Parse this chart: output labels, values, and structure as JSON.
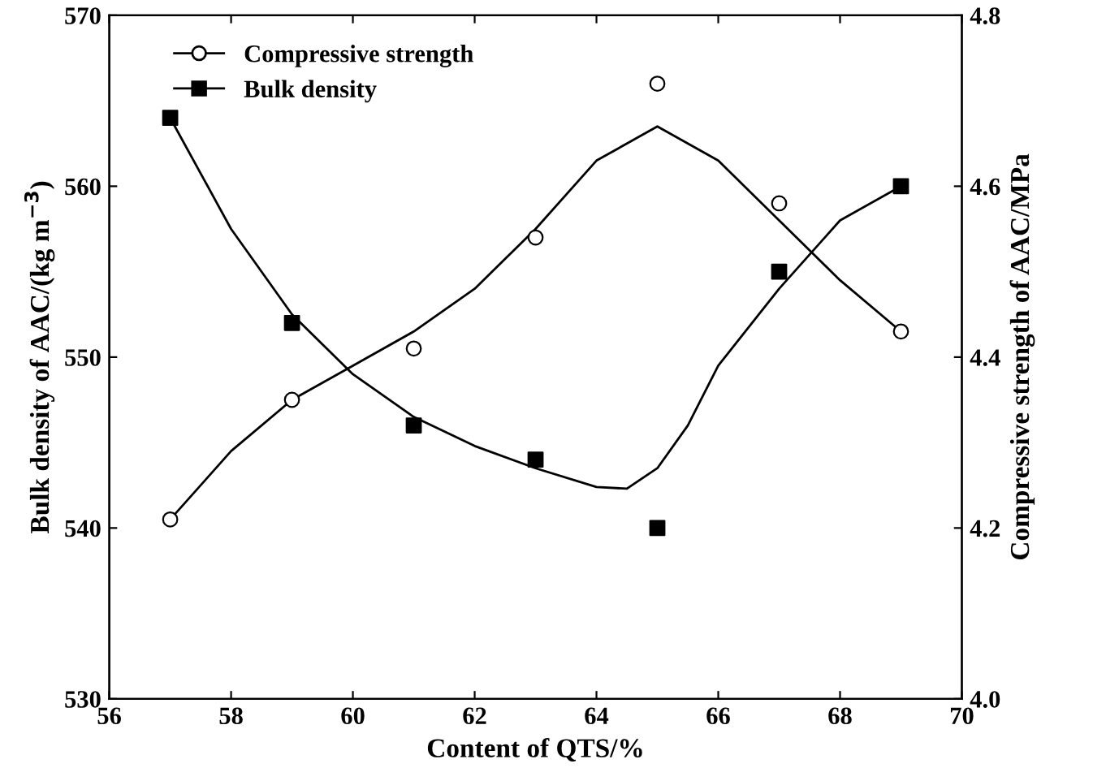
{
  "chart_data": {
    "type": "scatter",
    "xlabel": "Content of QTS/%",
    "ylabel": "Bulk density of AAC/(kg m$^{−3}$)",
    "y2label": "Compressive strength of AAC/MPa",
    "xlim": [
      56,
      70
    ],
    "xticks": [
      56,
      58,
      60,
      62,
      64,
      66,
      68,
      70
    ],
    "ylim": [
      530,
      570
    ],
    "yticks": [
      530,
      540,
      550,
      560,
      570
    ],
    "y2lim": [
      4.0,
      4.8
    ],
    "y2ticks": [
      {
        "value": 4.0,
        "label": "4.0"
      },
      {
        "value": 4.2,
        "label": "4.2"
      },
      {
        "value": 4.4,
        "label": "4.4"
      },
      {
        "value": 4.6,
        "label": "4.6"
      },
      {
        "value": 4.8,
        "label": "4.8"
      }
    ],
    "legend": "top left",
    "grid": false,
    "series": [
      {
        "name": "Compressive strength",
        "axis": "y2",
        "marker": "circle",
        "color": "#000000",
        "x": [
          57,
          59,
          61,
          63,
          65,
          67,
          69
        ],
        "values": [
          4.21,
          4.35,
          4.41,
          4.54,
          4.72,
          4.58,
          4.43
        ]
      },
      {
        "name": "Bulk density",
        "marker": "square",
        "color": "#000000",
        "x": [
          57,
          59,
          61,
          63,
          65,
          67,
          69
        ],
        "values": [
          564,
          552,
          546,
          544,
          540,
          555,
          560
        ]
      },
      {
        "type": "line",
        "axis": "y2",
        "marker": "none",
        "color": "#000000",
        "x": [
          57,
          58,
          59,
          60,
          61,
          62,
          63,
          64,
          65,
          66,
          67,
          68,
          69
        ],
        "values": [
          4.21,
          4.29,
          4.35,
          4.39,
          4.43,
          4.48,
          4.55,
          4.63,
          4.67,
          4.63,
          4.56,
          4.49,
          4.43
        ]
      },
      {
        "type": "line",
        "marker": "none",
        "color": "#000000",
        "x": [
          57,
          58,
          59,
          60,
          61,
          62,
          63,
          64,
          64.5,
          65,
          65.5,
          66,
          67,
          68,
          69
        ],
        "values": [
          564,
          557.5,
          552.5,
          549,
          546.5,
          544.8,
          543.5,
          542.4,
          542.3,
          543.5,
          546,
          549.5,
          554,
          558,
          560
        ]
      }
    ]
  }
}
